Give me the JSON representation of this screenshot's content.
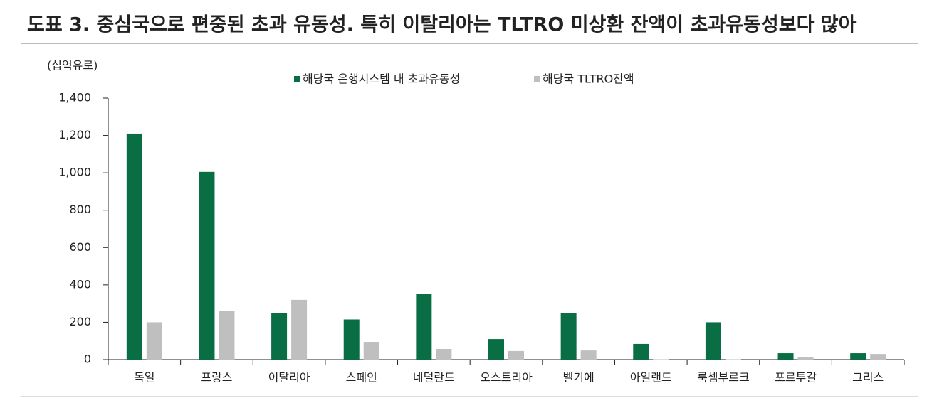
{
  "chart_data": {
    "type": "bar",
    "title": "도표 3. 중심국으로 편중된 초과 유동성. 특히 이탈리아는 TLTRO 미상환 잔액이 초과유동성보다 많아",
    "ylabel": "(십억유로)",
    "categories": [
      "독일",
      "프랑스",
      "이탈리아",
      "스페인",
      "네덜란드",
      "오스트리아",
      "벨기에",
      "아일랜드",
      "룩셈부르크",
      "포르투갈",
      "그리스"
    ],
    "series": [
      {
        "name": "해당국 은행시스템 내 초과유동성",
        "color": "#0a6e45",
        "values": [
          1210,
          1005,
          250,
          215,
          350,
          110,
          250,
          84,
          200,
          34,
          34
        ]
      },
      {
        "name": "해당국 TLTRO잔액",
        "color": "#bfbfbf",
        "values": [
          200,
          262,
          320,
          95,
          57,
          46,
          49,
          2,
          2,
          15,
          30
        ]
      }
    ],
    "ylim": [
      0,
      1400
    ],
    "yticks": [
      0,
      200,
      400,
      600,
      800,
      {
        "value": 1000,
        "label": "1,000"
      },
      {
        "value": 1200,
        "label": "1,200"
      },
      {
        "value": 1400,
        "label": "1,400"
      }
    ],
    "legend": "top"
  }
}
